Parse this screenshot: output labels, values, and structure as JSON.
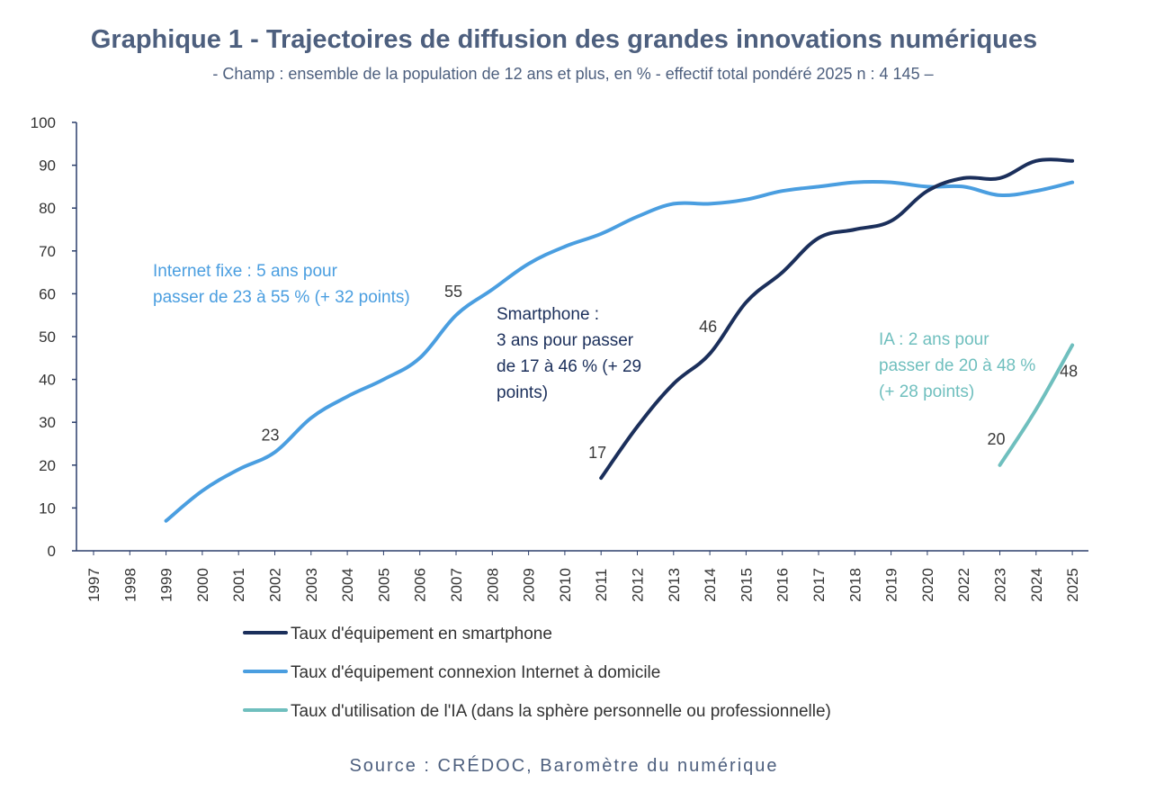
{
  "header": {
    "title": "Graphique 1 - Trajectoires de diffusion des grandes innovations numériques",
    "subtitle": "- Champ : ensemble de la population de 12 ans et plus, en % - effectif total pondéré 2025 n : 4 145 –"
  },
  "footer": {
    "source": "Source : CRÉDOC, Baromètre du numérique"
  },
  "chart_data": {
    "type": "line",
    "categories": [
      "1997",
      "1998",
      "1999",
      "2000",
      "2001",
      "2002",
      "2003",
      "2004",
      "2005",
      "2006",
      "2007",
      "2008",
      "2009",
      "2010",
      "2011",
      "2012",
      "2013",
      "2014",
      "2015",
      "2016",
      "2017",
      "2018",
      "2019",
      "2020",
      "2022",
      "2023",
      "2024",
      "2025"
    ],
    "ylim": [
      0,
      100
    ],
    "yticks": [
      0,
      10,
      20,
      30,
      40,
      50,
      60,
      70,
      80,
      90,
      100
    ],
    "xlabel": "",
    "ylabel": "",
    "series": [
      {
        "name": "Taux d'équipement en smartphone",
        "color": "#1b2f5b",
        "values": [
          null,
          null,
          null,
          null,
          null,
          null,
          null,
          null,
          null,
          null,
          null,
          null,
          null,
          null,
          17,
          29,
          39,
          46,
          58,
          65,
          73,
          75,
          77,
          84,
          87,
          87,
          91,
          91
        ]
      },
      {
        "name": "Taux d'équipement connexion Internet à domicile",
        "color": "#4a9ee0",
        "values": [
          null,
          null,
          7,
          14,
          19,
          23,
          31,
          36,
          40,
          45,
          55,
          61,
          67,
          71,
          74,
          78,
          81,
          81,
          82,
          84,
          85,
          86,
          86,
          85,
          85,
          83,
          84,
          86
        ]
      },
      {
        "name": "Taux d'utilisation de l'IA (dans la sphère personnelle ou professionnelle)",
        "color": "#6fbfbe",
        "values": [
          null,
          null,
          null,
          null,
          null,
          null,
          null,
          null,
          null,
          null,
          null,
          null,
          null,
          null,
          null,
          null,
          null,
          null,
          null,
          null,
          null,
          null,
          null,
          null,
          null,
          20,
          33,
          48
        ]
      }
    ],
    "data_labels": [
      {
        "series": 1,
        "index": 5,
        "text": "23"
      },
      {
        "series": 1,
        "index": 10,
        "text": "55"
      },
      {
        "series": 0,
        "index": 14,
        "text": "17"
      },
      {
        "series": 0,
        "index": 17,
        "text": "46"
      },
      {
        "series": 2,
        "index": 25,
        "text": "20"
      },
      {
        "series": 2,
        "index": 27,
        "text": "48"
      }
    ],
    "annotations": [
      {
        "series": 1,
        "lines": [
          "Internet fixe : 5 ans pour",
          "passer de 23 à 55 % (+ 32 points)"
        ]
      },
      {
        "series": 0,
        "lines": [
          "Smartphone :",
          "3 ans pour passer",
          "de 17 à 46 % (+ 29",
          "points)"
        ]
      },
      {
        "series": 2,
        "lines": [
          "IA : 2 ans pour",
          "passer de 20 à 48 %",
          "(+ 28 points)"
        ]
      }
    ],
    "legend_position": "bottom-left"
  }
}
